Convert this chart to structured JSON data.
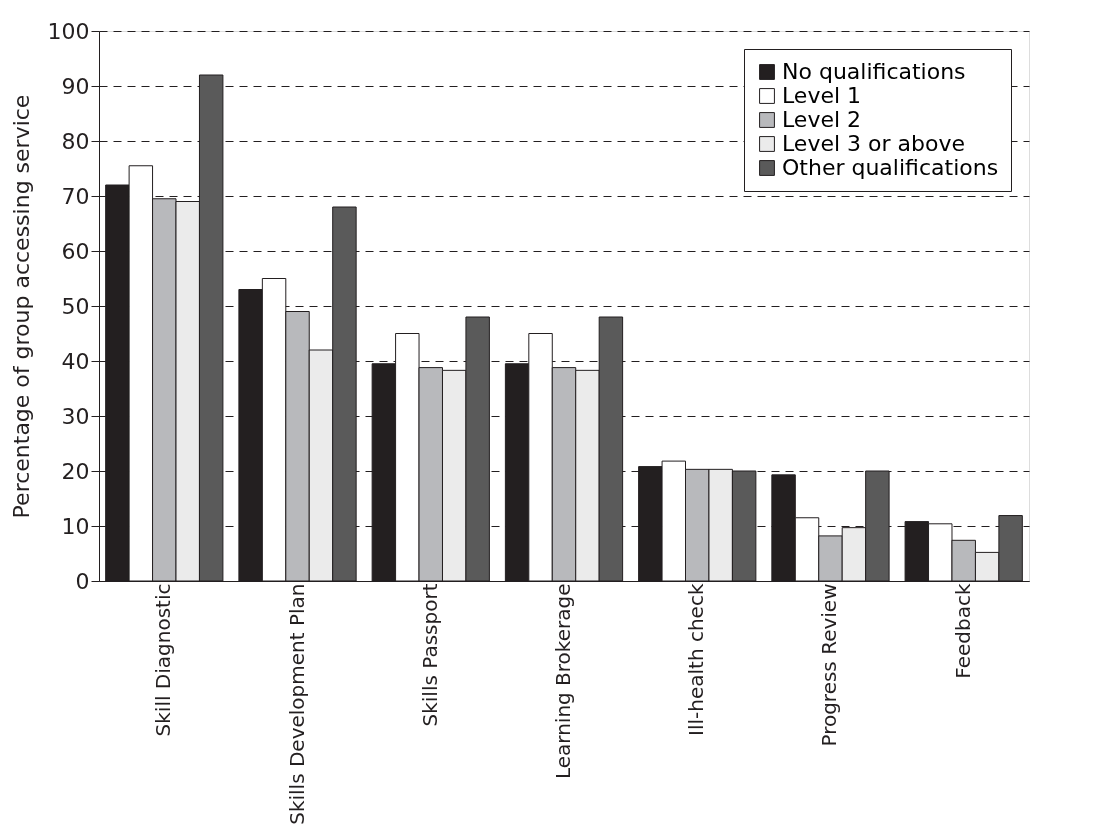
{
  "chart_data": {
    "type": "bar",
    "ylabel": "Percentage of group accessing service",
    "categories": [
      "Skill Diagnostic",
      "Skills Development Plan",
      "Skills Passport",
      "Learning Brokerage",
      "Ill-health check",
      "Progress Review",
      "Feedback"
    ],
    "series": [
      {
        "name": "No qualifications",
        "color": "#231f20",
        "values": [
          72,
          53,
          39.5,
          39.5,
          20.8,
          19.3,
          10.8
        ]
      },
      {
        "name": "Level 1",
        "color": "#ffffff",
        "values": [
          75.5,
          55,
          45,
          45,
          21.8,
          11.5,
          10.4
        ]
      },
      {
        "name": "Level 2",
        "color": "#b8b9bc",
        "values": [
          69.5,
          49,
          38.8,
          38.8,
          20.3,
          8.2,
          7.4
        ]
      },
      {
        "name": "Level 3 or above",
        "color": "#ebebeb",
        "values": [
          69,
          42,
          38.3,
          38.3,
          20.3,
          9.7,
          5.2
        ]
      },
      {
        "name": "Other qualifications",
        "color": "#5a5a5a",
        "values": [
          92,
          68,
          48,
          48,
          20,
          20,
          11.9
        ]
      }
    ],
    "ylim": [
      0,
      100
    ],
    "yticks": [
      0,
      10,
      20,
      30,
      40,
      50,
      60,
      70,
      80,
      90,
      100
    ],
    "grid": "y",
    "line_style": "dashed",
    "legend": "top right"
  }
}
